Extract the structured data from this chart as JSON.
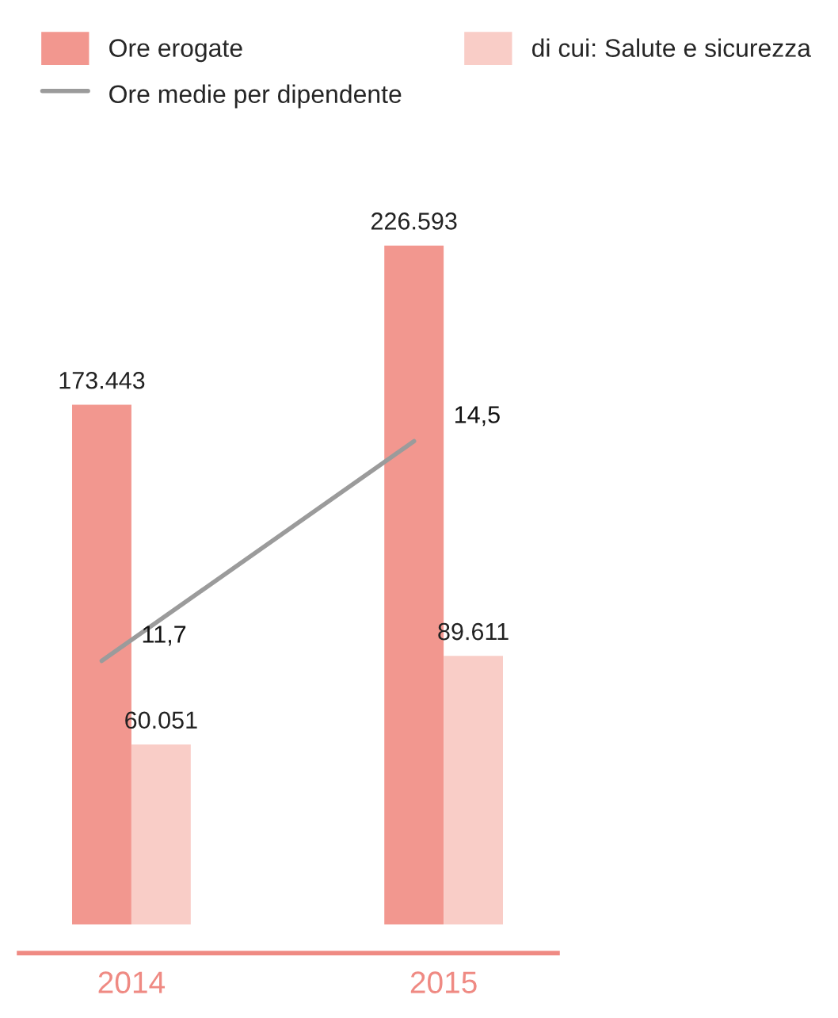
{
  "chart_data": {
    "type": "bar",
    "categories": [
      "2014",
      "2015"
    ],
    "tick_labels": "x",
    "legend": "top right",
    "grid": false,
    "series": [
      {
        "name": "Ore erogate",
        "color": "#f2978f",
        "values": [
          173443,
          226593
        ],
        "value_labels": [
          "173.443",
          "226.593"
        ]
      },
      {
        "name": "di cui: Salute e sicurezza",
        "color": "#f9cdc7",
        "values": [
          60051,
          89611
        ],
        "value_labels": [
          "60.051",
          "89.611"
        ]
      },
      {
        "name": "Ore medie per dipendente",
        "type": "line",
        "axis": "y2",
        "color": "#9b9b9b",
        "values": [
          11.7,
          14.5
        ],
        "value_labels": [
          "11,7",
          "14,5"
        ]
      }
    ]
  }
}
